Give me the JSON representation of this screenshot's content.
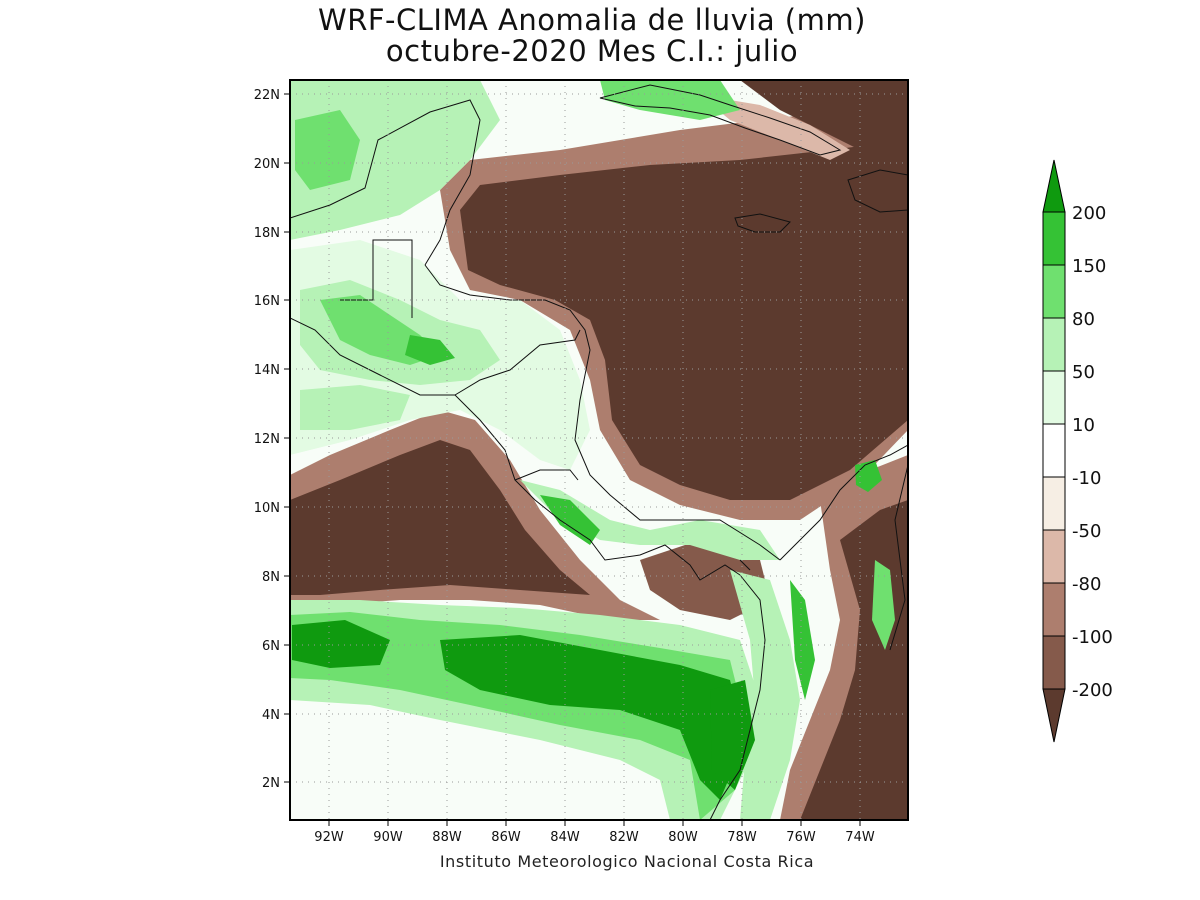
{
  "title": {
    "line1": "WRF-CLIMA Anomalia de lluvia (mm)",
    "line2": "octubre-2020 Mes C.I.: julio"
  },
  "credit": "Instituto Meteorologico Nacional Costa Rica",
  "axes": {
    "lon_labels": [
      "92W",
      "90W",
      "88W",
      "86W",
      "84W",
      "82W",
      "80W",
      "78W",
      "76W",
      "74W"
    ],
    "lat_labels": [
      "22N",
      "20N",
      "18N",
      "16N",
      "14N",
      "12N",
      "10N",
      "8N",
      "6N",
      "4N",
      "2N"
    ],
    "lon_range": [
      -93.3,
      -72.3
    ],
    "lat_range": [
      0.9,
      22.4
    ],
    "grid": true
  },
  "legend": {
    "labels": [
      "200",
      "150",
      "80",
      "50",
      "10",
      "-10",
      "-50",
      "-80",
      "-100",
      "-200"
    ],
    "colors": [
      "#0f9a0f",
      "#35c235",
      "#6fe06f",
      "#b6f2b6",
      "#e3fbe3",
      "#ffffff",
      "#f6eee4",
      "#dcb8a9",
      "#ad7e6e",
      "#855a4b",
      "#5c3a2e"
    ]
  },
  "colors": {
    "strong_dry": "#5c3a2e",
    "dry": "#855a4b",
    "moderate_dry": "#ad7e6e",
    "light_dry": "#dcb8a9",
    "very_light_dry": "#f6eee4",
    "neutral": "#ffffff",
    "very_light_wet": "#e3fbe3",
    "light_wet": "#b6f2b6",
    "moderate_wet": "#6fe06f",
    "wet": "#35c235",
    "strong_wet": "#0f9a0f"
  }
}
